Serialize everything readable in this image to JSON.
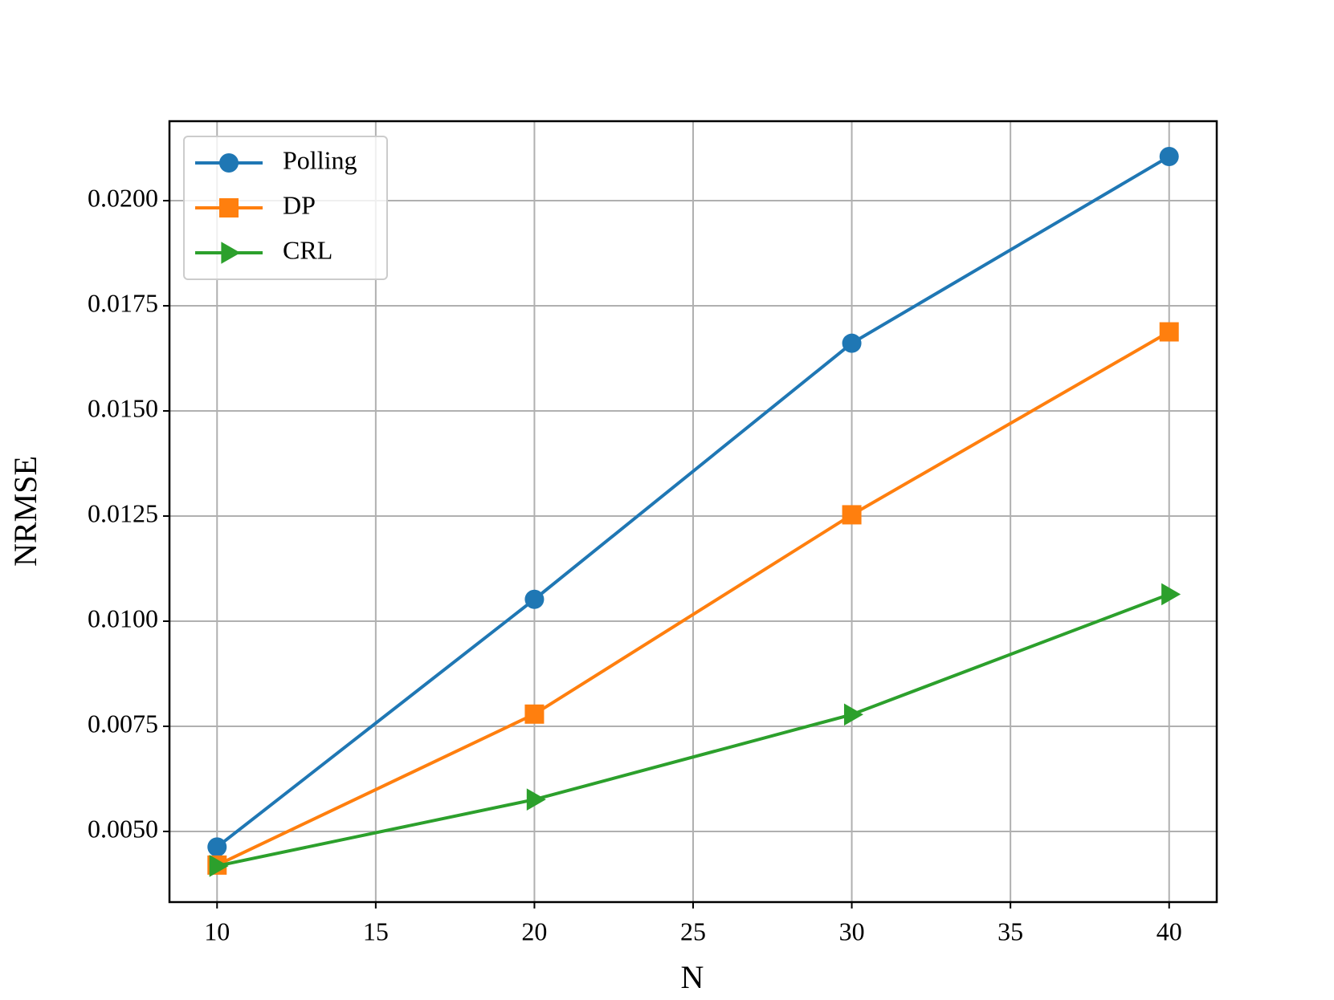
{
  "chart_data": {
    "type": "line",
    "xlabel": "N",
    "ylabel": "NRMSE",
    "x": [
      10,
      20,
      30,
      40
    ],
    "series": [
      {
        "name": "Polling",
        "color": "#1f77b4",
        "marker": "circle",
        "values": [
          0.00463,
          0.01052,
          0.01661,
          0.02105
        ]
      },
      {
        "name": "DP",
        "color": "#ff7f0e",
        "marker": "square",
        "values": [
          0.0042,
          0.00779,
          0.01253,
          0.01688
        ]
      },
      {
        "name": "CRL",
        "color": "#2ca02c",
        "marker": "triangle-right",
        "values": [
          0.00418,
          0.00576,
          0.00778,
          0.01064
        ]
      }
    ],
    "xlim": [
      8.5,
      41.5
    ],
    "ylim": [
      0.00332,
      0.02189
    ],
    "xticks": [
      10,
      15,
      20,
      25,
      30,
      35,
      40
    ],
    "yticks": [
      {
        "value": 0.005,
        "label": "0.0050"
      },
      {
        "value": 0.0075,
        "label": "0.0075"
      },
      {
        "value": 0.01,
        "label": "0.0100"
      },
      {
        "value": 0.0125,
        "label": "0.0125"
      },
      {
        "value": 0.015,
        "label": "0.0150"
      },
      {
        "value": 0.0175,
        "label": "0.0175"
      },
      {
        "value": 0.02,
        "label": "0.0200"
      }
    ],
    "grid": true,
    "legend": "upper left"
  }
}
